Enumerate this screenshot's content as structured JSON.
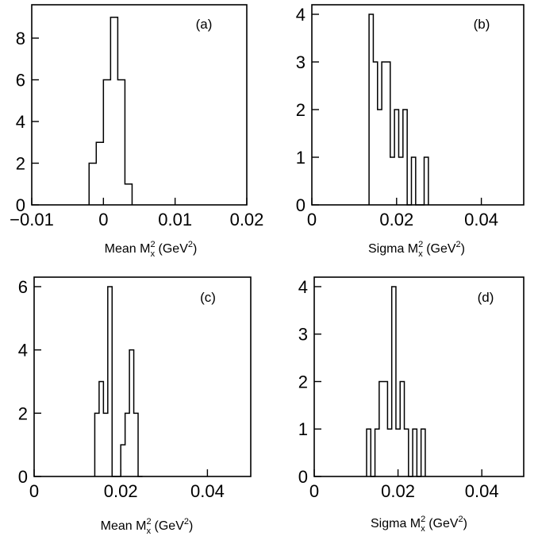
{
  "chart_data": [
    {
      "type": "histogram",
      "panel_label": "(a)",
      "xlabel": {
        "prefix": "Mean M",
        "sup": "2",
        "sub": "x",
        "unit_open": " (GeV",
        "unit_sup": "2",
        "unit_close": ")"
      },
      "xlim": [
        -0.01,
        0.02
      ],
      "ylim": [
        0,
        9.6
      ],
      "xticks": [
        -0.01,
        0,
        0.01,
        0.02
      ],
      "xtick_labels": [
        "−0.01",
        "0",
        "0.01",
        "0.02"
      ],
      "yticks": [
        0,
        2,
        4,
        6,
        8
      ],
      "ytick_labels": [
        "0",
        "2",
        "4",
        "6",
        "8"
      ],
      "bin_edges": [
        -0.002,
        -0.001,
        0,
        0.001,
        0.002,
        0.003,
        0.004
      ],
      "counts": [
        2,
        3,
        6,
        9,
        6,
        1
      ]
    },
    {
      "type": "histogram",
      "panel_label": "(b)",
      "xlabel": {
        "prefix": "Sigma M",
        "sup": "2",
        "sub": "x",
        "unit_open": " (GeV",
        "unit_sup": "2",
        "unit_close": ")"
      },
      "xlim": [
        0,
        0.05
      ],
      "ylim": [
        0,
        4.2
      ],
      "xticks": [
        0,
        0.02,
        0.04
      ],
      "xtick_labels": [
        "0",
        "0.02",
        "0.04"
      ],
      "yticks": [
        0,
        1,
        2,
        3,
        4
      ],
      "ytick_labels": [
        "0",
        "1",
        "2",
        "3",
        "4"
      ],
      "bin_edges": [
        0.0135,
        0.0145,
        0.0155,
        0.0165,
        0.0175,
        0.0185,
        0.0195,
        0.0205,
        0.0215,
        0.0225,
        0.0235,
        0.0245,
        0.0255,
        0.0265,
        0.0275
      ],
      "counts": [
        4,
        3,
        2,
        3,
        3,
        1,
        2,
        1,
        2,
        0,
        1,
        0,
        0,
        1
      ]
    },
    {
      "type": "histogram",
      "panel_label": "(c)",
      "xlabel": {
        "prefix": "Mean M",
        "sup": "2",
        "sub": "x",
        "unit_open": " (GeV",
        "unit_sup": "2",
        "unit_close": ")"
      },
      "xlim": [
        0,
        0.05
      ],
      "ylim": [
        0,
        6.3
      ],
      "xticks": [
        0,
        0.02,
        0.04
      ],
      "xtick_labels": [
        "0",
        "0.02",
        "0.04"
      ],
      "yticks": [
        0,
        2,
        4,
        6
      ],
      "ytick_labels": [
        "0",
        "2",
        "4",
        "6"
      ],
      "bin_edges": [
        0.014,
        0.015,
        0.016,
        0.017,
        0.018,
        0.019,
        0.02,
        0.021,
        0.022,
        0.023,
        0.024,
        0.025
      ],
      "counts": [
        2,
        3,
        2,
        6,
        0,
        0,
        1,
        2,
        4,
        2,
        0
      ]
    },
    {
      "type": "histogram",
      "panel_label": "(d)",
      "xlabel": {
        "prefix": "Sigma M",
        "sup": "2",
        "sub": "x",
        "unit_open": " (GeV",
        "unit_sup": "2",
        "unit_close": ")"
      },
      "xlim": [
        0,
        0.05
      ],
      "ylim": [
        0,
        4.2
      ],
      "xticks": [
        0,
        0.02,
        0.04
      ],
      "xtick_labels": [
        "0",
        "0.02",
        "0.04"
      ],
      "yticks": [
        0,
        1,
        2,
        3,
        4
      ],
      "ytick_labels": [
        "0",
        "1",
        "2",
        "3",
        "4"
      ],
      "bin_edges": [
        0.0125,
        0.0135,
        0.0145,
        0.0155,
        0.0165,
        0.0175,
        0.0185,
        0.0195,
        0.0205,
        0.0215,
        0.0225,
        0.0235,
        0.0245,
        0.0255,
        0.0265
      ],
      "counts": [
        1,
        0,
        1,
        2,
        2,
        1,
        4,
        1,
        2,
        1,
        0,
        1,
        0,
        1
      ]
    }
  ]
}
